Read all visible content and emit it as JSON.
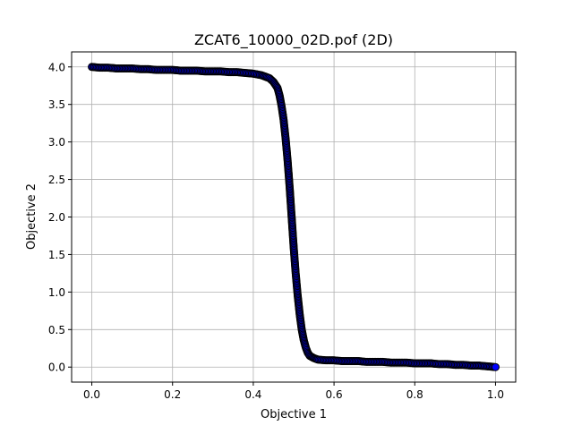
{
  "chart_data": {
    "type": "scatter",
    "title": "ZCAT6_10000_02D.pof (2D)",
    "xlabel": "Objective 1",
    "ylabel": "Objective 2",
    "xlim": [
      -0.05,
      1.05
    ],
    "ylim": [
      -0.2,
      4.2
    ],
    "x_ticks": [
      "0.0",
      "0.2",
      "0.4",
      "0.6",
      "0.8",
      "1.0"
    ],
    "y_ticks": [
      "0.0",
      "0.5",
      "1.0",
      "1.5",
      "2.0",
      "2.5",
      "3.0",
      "3.5",
      "4.0"
    ],
    "grid": true,
    "marker_fill": "#0000ff",
    "marker_edge": "#000000",
    "series": [
      {
        "x": [
          0.0,
          0.02,
          0.04,
          0.06,
          0.08,
          0.1,
          0.12,
          0.14,
          0.16,
          0.18,
          0.2,
          0.22,
          0.24,
          0.26,
          0.28,
          0.3,
          0.32,
          0.34,
          0.36,
          0.38,
          0.4,
          0.42,
          0.44,
          0.45,
          0.46,
          0.465,
          0.47,
          0.475,
          0.48,
          0.485,
          0.49,
          0.495,
          0.5,
          0.505,
          0.51,
          0.515,
          0.52,
          0.525,
          0.53,
          0.535,
          0.54,
          0.55,
          0.56,
          0.58,
          0.6,
          0.62,
          0.64,
          0.66,
          0.68,
          0.7,
          0.72,
          0.74,
          0.76,
          0.78,
          0.8,
          0.82,
          0.84,
          0.86,
          0.88,
          0.9,
          0.92,
          0.94,
          0.96,
          0.98,
          1.0
        ],
        "y": [
          4.0,
          3.99,
          3.99,
          3.98,
          3.98,
          3.98,
          3.97,
          3.97,
          3.96,
          3.96,
          3.96,
          3.95,
          3.95,
          3.95,
          3.94,
          3.94,
          3.94,
          3.93,
          3.93,
          3.92,
          3.91,
          3.89,
          3.85,
          3.8,
          3.72,
          3.62,
          3.48,
          3.3,
          3.05,
          2.75,
          2.4,
          2.0,
          1.6,
          1.25,
          0.95,
          0.7,
          0.5,
          0.36,
          0.26,
          0.19,
          0.15,
          0.12,
          0.1,
          0.09,
          0.09,
          0.08,
          0.08,
          0.08,
          0.07,
          0.07,
          0.07,
          0.06,
          0.06,
          0.06,
          0.05,
          0.05,
          0.05,
          0.04,
          0.04,
          0.03,
          0.03,
          0.02,
          0.02,
          0.01,
          0.0
        ]
      }
    ]
  }
}
